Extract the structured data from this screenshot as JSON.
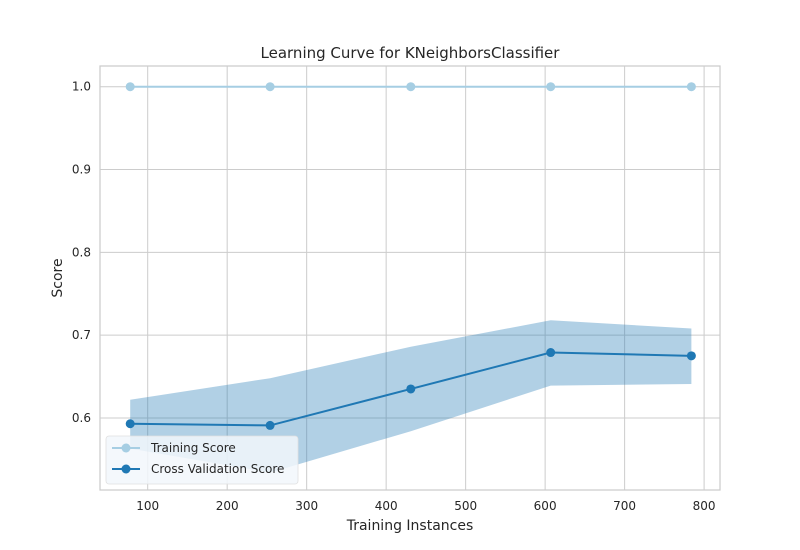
{
  "chart_data": {
    "type": "line",
    "title": "Learning Curve for KNeighborsClassifier",
    "xlabel": "Training Instances",
    "ylabel": "Score",
    "xlim": [
      40,
      820
    ],
    "ylim": [
      0.513,
      1.025
    ],
    "x_ticks": [
      100,
      200,
      300,
      400,
      500,
      600,
      700,
      800
    ],
    "y_ticks": [
      0.6,
      0.7,
      0.8,
      0.9,
      1.0
    ],
    "x_tick_labels": [
      "100",
      "200",
      "300",
      "400",
      "500",
      "600",
      "700",
      "800"
    ],
    "y_tick_labels": [
      "0.6",
      "0.7",
      "0.8",
      "0.9",
      "1.0"
    ],
    "grid": true,
    "legend_position": "bottom-left",
    "x": [
      78,
      254,
      431,
      607,
      784
    ],
    "series": [
      {
        "name": "Training Score",
        "color": "#a6cee3",
        "values": [
          1.0,
          1.0,
          1.0,
          1.0,
          1.0
        ],
        "band_upper": [
          1.0,
          1.0,
          1.0,
          1.0,
          1.0
        ],
        "band_lower": [
          1.0,
          1.0,
          1.0,
          1.0,
          1.0
        ]
      },
      {
        "name": "Cross Validation Score",
        "color": "#1f78b4",
        "values": [
          0.593,
          0.591,
          0.635,
          0.679,
          0.675
        ],
        "band_upper": [
          0.622,
          0.648,
          0.686,
          0.718,
          0.708
        ],
        "band_lower": [
          0.563,
          0.534,
          0.584,
          0.639,
          0.641
        ]
      }
    ]
  }
}
